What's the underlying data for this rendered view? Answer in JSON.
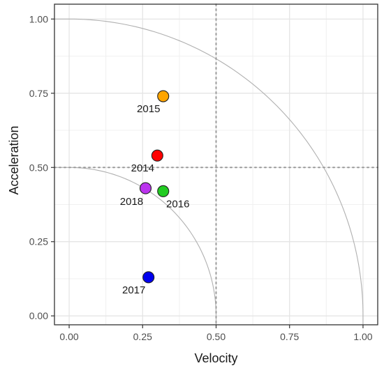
{
  "chart_data": {
    "type": "scatter",
    "xlabel": "Velocity",
    "ylabel": "Acceleration",
    "xlim": [
      -0.05,
      1.05
    ],
    "ylim": [
      -0.03,
      1.05
    ],
    "x_ticks": [
      0.0,
      0.25,
      0.5,
      0.75,
      1.0
    ],
    "y_ticks": [
      0.0,
      0.25,
      0.5,
      0.75,
      1.0
    ],
    "x_tick_labels": [
      "0.00",
      "0.25",
      "0.50",
      "0.75",
      "1.00"
    ],
    "y_tick_labels": [
      "0.00",
      "0.25",
      "0.50",
      "0.75",
      "1.00"
    ],
    "grid": true,
    "reference_lines": {
      "x": 0.5,
      "y": 0.5,
      "style": "dotted"
    },
    "reference_arcs": [
      {
        "radius": 0.5
      },
      {
        "radius": 1.0
      }
    ],
    "points": [
      {
        "label": "2015",
        "x": 0.32,
        "y": 0.74,
        "color": "#FFA500"
      },
      {
        "label": "2014",
        "x": 0.3,
        "y": 0.54,
        "color": "#FF0000"
      },
      {
        "label": "2018",
        "x": 0.26,
        "y": 0.43,
        "color": "#BB33EE"
      },
      {
        "label": "2016",
        "x": 0.32,
        "y": 0.42,
        "color": "#22CC22"
      },
      {
        "label": "2017",
        "x": 0.27,
        "y": 0.13,
        "color": "#0000EE"
      }
    ]
  }
}
